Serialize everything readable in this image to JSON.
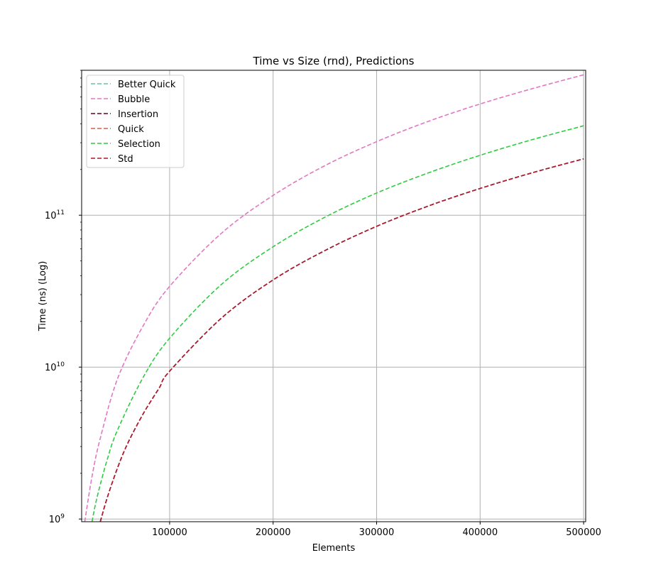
{
  "chart_data": {
    "type": "line",
    "title": "Time vs Size (rnd), Predictions",
    "xlabel": "Elements",
    "ylabel": "Time (ns) (Log)",
    "yscale": "log",
    "xlim": [
      15000,
      502000
    ],
    "ylim": [
      960000000,
      900000000000
    ],
    "grid": true,
    "legend_position": "top-left",
    "x_ticks": [
      {
        "value": 100000,
        "label": "100000"
      },
      {
        "value": 200000,
        "label": "200000"
      },
      {
        "value": 300000,
        "label": "300000"
      },
      {
        "value": 400000,
        "label": "400000"
      },
      {
        "value": 500000,
        "label": "500000"
      }
    ],
    "y_ticks": [
      {
        "value": 1000000000,
        "base": "10",
        "exp": "9"
      },
      {
        "value": 10000000000,
        "base": "10",
        "exp": "10"
      },
      {
        "value": 100000000000,
        "base": "10",
        "exp": "11"
      }
    ],
    "series": [
      {
        "name": "Better Quick",
        "color": "#66c2a5",
        "style": "dashed",
        "x": [],
        "y": []
      },
      {
        "name": "Bubble",
        "color": "#e377c2",
        "style": "dashed",
        "x": [
          18000,
          25000,
          33000,
          50000,
          75000,
          100000,
          150000,
          200000,
          250000,
          300000,
          350000,
          400000,
          450000,
          500000
        ],
        "y": [
          960000000,
          1900000000,
          3400000000,
          8500000000,
          19000000000,
          34000000000,
          76000000000,
          135000000000,
          212000000000,
          305000000000,
          415000000000,
          540000000000,
          680000000000,
          840000000000
        ]
      },
      {
        "name": "Insertion",
        "color": "#67001f",
        "style": "dashed",
        "x": [
          33000,
          40000,
          50000,
          60000,
          75000,
          90000,
          100000,
          150000,
          200000,
          250000,
          300000,
          350000,
          400000,
          450000,
          500000
        ],
        "y": [
          960000000,
          1400000000,
          2200000000,
          3200000000,
          5000000000,
          7300000000,
          9400000000,
          21000000000,
          37500000000,
          58500000000,
          84500000000,
          115000000000,
          150000000000,
          190000000000,
          235000000000
        ]
      },
      {
        "name": "Quick",
        "color": "#d6604d",
        "style": "dashed",
        "x": [],
        "y": []
      },
      {
        "name": "Selection",
        "color": "#2ecc40",
        "style": "dashed",
        "x": [
          25000,
          30000,
          40000,
          50000,
          75000,
          100000,
          150000,
          200000,
          250000,
          300000,
          350000,
          400000,
          450000,
          500000
        ],
        "y": [
          960000000,
          1400000000,
          2500000000,
          3900000000,
          8700000000,
          15500000000,
          35000000000,
          62000000000,
          97000000000,
          140000000000,
          190000000000,
          248000000000,
          314000000000,
          388000000000
        ]
      },
      {
        "name": "Std",
        "color": "#b2182b",
        "style": "dashed",
        "x": [
          33000,
          40000,
          50000,
          60000,
          75000,
          90000,
          100000,
          150000,
          200000,
          250000,
          300000,
          350000,
          400000,
          450000,
          500000
        ],
        "y": [
          960000000,
          1400000000,
          2200000000,
          3200000000,
          5000000000,
          7300000000,
          9400000000,
          21000000000,
          37500000000,
          58500000000,
          84500000000,
          115000000000,
          150000000000,
          190000000000,
          235000000000
        ]
      }
    ]
  }
}
